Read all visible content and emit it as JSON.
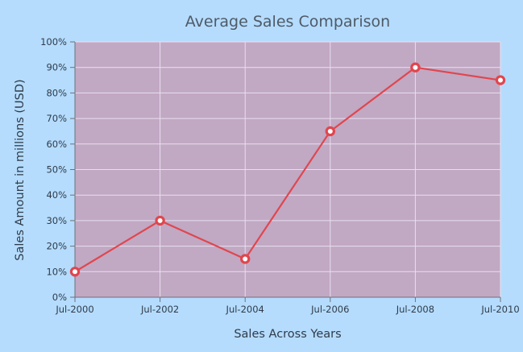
{
  "chart_data": {
    "type": "line",
    "title": "Average Sales Comparison",
    "xlabel": "Sales Across Years",
    "ylabel": "Sales Amount in millions (USD)",
    "x": [
      "Jul-2000",
      "Jul-2002",
      "Jul-2004",
      "Jul-2006",
      "Jul-2008",
      "Jul-2010"
    ],
    "y_tick_labels": [
      "0%",
      "10%",
      "20%",
      "30%",
      "40%",
      "50%",
      "60%",
      "70%",
      "80%",
      "90%",
      "100%"
    ],
    "ylim": [
      0,
      100
    ],
    "series": [
      {
        "values": [
          10,
          30,
          15,
          65,
          90,
          85
        ],
        "color": "#e0464e"
      }
    ],
    "grid": true,
    "legend": "none",
    "colors": {
      "page_background": "#b5dcfd",
      "plot_background": "#c1a8c3",
      "gridline": "#e9dff0",
      "axis_line": "#6f6f78",
      "marker_fill": "#ffffff"
    }
  }
}
